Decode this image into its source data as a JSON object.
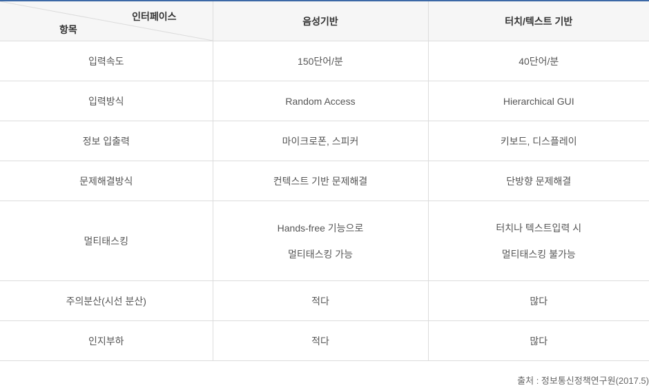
{
  "header": {
    "corner_top": "인터페이스",
    "corner_bottom": "항목",
    "columns": [
      "음성기반",
      "터치/텍스트 기반"
    ]
  },
  "rows": [
    {
      "item": "입력속도",
      "voice": [
        "150단어/분"
      ],
      "touch": [
        "40단어/분"
      ]
    },
    {
      "item": "입력방식",
      "voice": [
        "Random Access"
      ],
      "touch": [
        "Hierarchical GUI"
      ]
    },
    {
      "item": "정보 입출력",
      "voice": [
        "마이크로폰, 스피커"
      ],
      "touch": [
        "키보드, 디스플레이"
      ]
    },
    {
      "item": "문제해결방식",
      "voice": [
        "컨텍스트 기반 문제해결"
      ],
      "touch": [
        "단방향 문제해결"
      ]
    },
    {
      "item": "멀티태스킹",
      "voice": [
        "Hands-free 기능으로",
        "멀티태스킹 가능"
      ],
      "touch": [
        "터치나 텍스트입력 시",
        "멀티태스킹 불가능"
      ]
    },
    {
      "item": "주의분산(시선 분산)",
      "voice": [
        "적다"
      ],
      "touch": [
        "많다"
      ]
    },
    {
      "item": "인지부하",
      "voice": [
        "적다"
      ],
      "touch": [
        "많다"
      ]
    }
  ],
  "source": "출처 : 정보통신정책연구원(2017.5)",
  "colors": {
    "top_border": "#3b68a6",
    "header_bg": "#f6f6f6"
  }
}
